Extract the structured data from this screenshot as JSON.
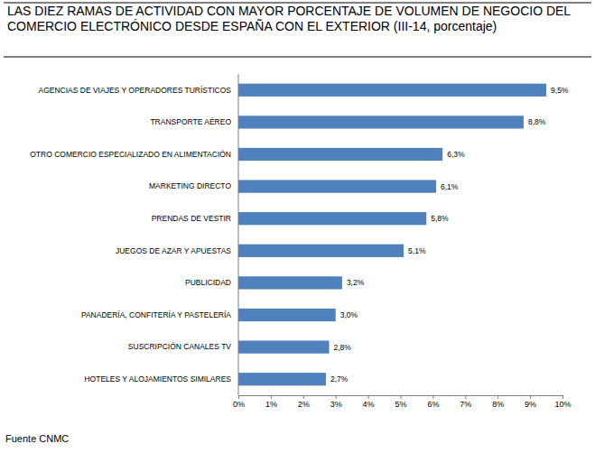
{
  "chart_data": {
    "type": "bar",
    "orientation": "horizontal",
    "title": "LAS DIEZ RAMAS DE ACTIVIDAD CON MAYOR PORCENTAJE DE VOLUMEN DE NEGOCIO DEL COMERCIO ELECTRÓNICO DESDE ESPAÑA CON EL EXTERIOR (III-14, porcentaje)",
    "source": "Fuente CNMC",
    "categories": [
      "AGENCIAS DE VIAJES Y OPERADORES TURÍSTICOS",
      "TRANSPORTE AÉREO",
      "OTRO COMERCIO ESPECIALIZADO EN ALIMENTACIÓN",
      "MARKETING DIRECTO",
      "PRENDAS DE VESTIR",
      "JUEGOS DE AZAR Y APUESTAS",
      "PUBLICIDAD",
      "PANADERÍA, CONFITERÍA Y PASTELERÍA",
      "SUSCRIPCIÓN CANALES TV",
      "HOTELES  Y ALOJAMIENTOS SIMILARES"
    ],
    "values": [
      9.5,
      8.8,
      6.3,
      6.1,
      5.8,
      5.1,
      3.2,
      3.0,
      2.8,
      2.7
    ],
    "value_labels": [
      "9,5%",
      "8,8%",
      "6,3%",
      "6,1%",
      "5,8%",
      "5,1%",
      "3,2%",
      "3,0%",
      "2,8%",
      "2,7%"
    ],
    "data_labels": true,
    "color": "#4f81bd",
    "grid": false,
    "xlim": [
      0,
      10
    ],
    "xticks": [
      {
        "value": 0,
        "label": "0%"
      },
      {
        "value": 1,
        "label": "1%"
      },
      {
        "value": 2,
        "label": "2%"
      },
      {
        "value": 3,
        "label": "3%"
      },
      {
        "value": 4,
        "label": "4%"
      },
      {
        "value": 5,
        "label": "5%"
      },
      {
        "value": 6,
        "label": "6%"
      },
      {
        "value": 7,
        "label": "7%"
      },
      {
        "value": 8,
        "label": "8%"
      },
      {
        "value": 9,
        "label": "9%"
      },
      {
        "value": 10,
        "label": "10%"
      }
    ]
  }
}
